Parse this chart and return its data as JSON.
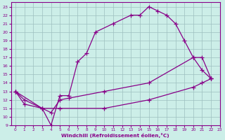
{
  "line1_x": [
    0,
    1,
    3,
    4,
    5,
    6,
    7,
    8,
    9,
    11,
    13,
    14,
    15,
    16,
    17,
    18,
    19,
    20,
    21,
    22
  ],
  "line1_y": [
    13,
    12,
    11,
    9,
    12.5,
    12.5,
    16.5,
    17.5,
    20,
    21,
    22,
    22,
    23,
    22.5,
    22,
    21,
    19,
    17,
    15.5,
    14.5
  ],
  "line2_x": [
    0,
    1,
    3,
    4,
    5,
    6,
    10,
    15,
    20,
    21,
    22
  ],
  "line2_y": [
    13,
    11.5,
    11,
    10.5,
    12,
    12.2,
    13,
    14,
    17,
    17,
    14.5
  ],
  "line3_x": [
    0,
    3,
    5,
    10,
    15,
    20,
    21,
    22
  ],
  "line3_y": [
    13,
    11,
    11,
    11,
    12,
    13.5,
    14,
    14.5
  ],
  "color": "#880088",
  "bg_color": "#cceee8",
  "grid_color": "#9dbfbf",
  "xlabel": "Windchill (Refroidissement éolien,°C)",
  "xlim": [
    -0.5,
    23
  ],
  "ylim": [
    9,
    23.5
  ],
  "xticks": [
    0,
    1,
    2,
    3,
    4,
    5,
    6,
    7,
    8,
    9,
    10,
    11,
    12,
    13,
    14,
    15,
    16,
    17,
    18,
    19,
    20,
    21,
    22,
    23
  ],
  "yticks": [
    9,
    10,
    11,
    12,
    13,
    14,
    15,
    16,
    17,
    18,
    19,
    20,
    21,
    22,
    23
  ],
  "marker": "+",
  "markersize": 4,
  "linewidth": 0.9
}
